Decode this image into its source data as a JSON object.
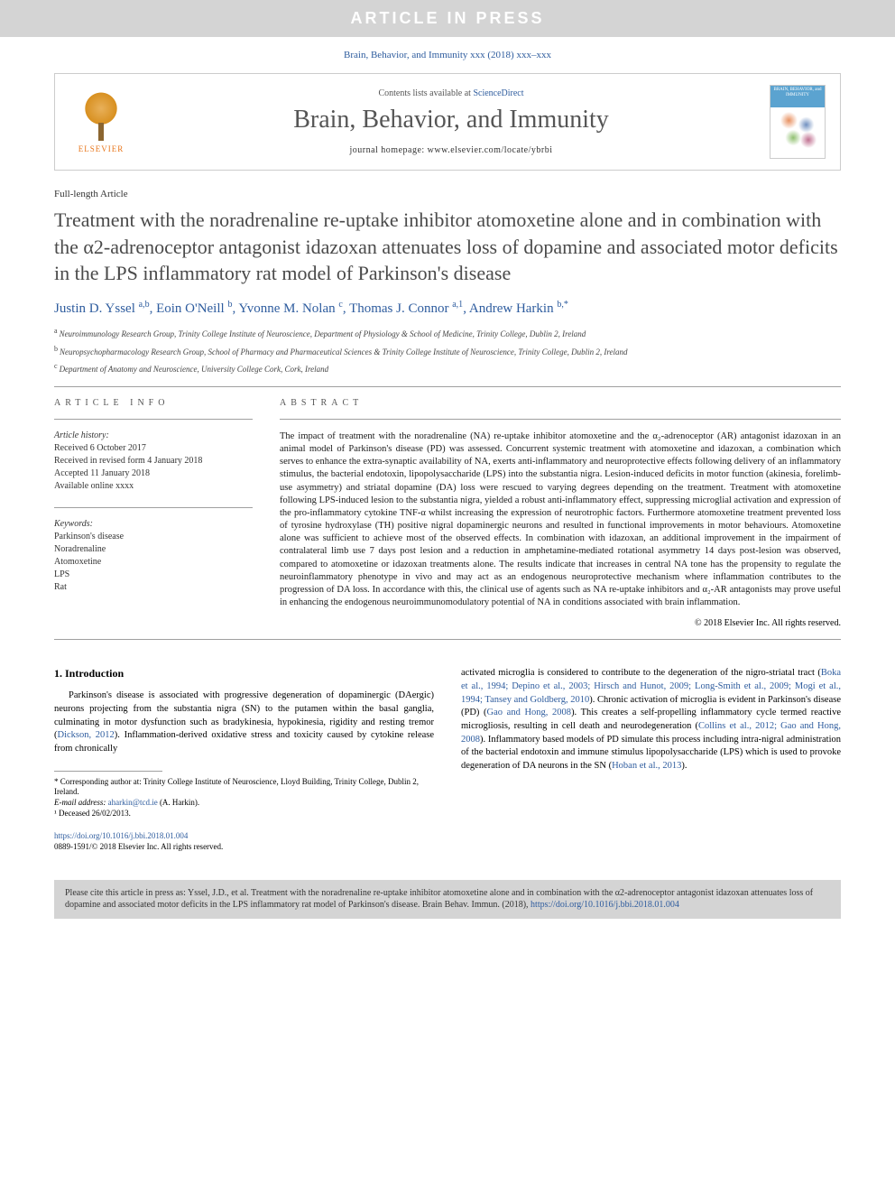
{
  "banner": {
    "text": "ARTICLE IN PRESS"
  },
  "citation_top": "Brain, Behavior, and Immunity xxx (2018) xxx–xxx",
  "header": {
    "elsevier": "ELSEVIER",
    "contents_prefix": "Contents lists available at ",
    "contents_link": "ScienceDirect",
    "journal_name": "Brain, Behavior, and Immunity",
    "homepage": "journal homepage: www.elsevier.com/locate/ybrbi",
    "cover_title": "BRAIN, BEHAVIOR, and IMMUNITY"
  },
  "article": {
    "type": "Full-length Article",
    "title": "Treatment with the noradrenaline re-uptake inhibitor atomoxetine alone and in combination with the α2-adrenoceptor antagonist idazoxan attenuates loss of dopamine and associated motor deficits in the LPS inflammatory rat model of Parkinson's disease",
    "authors_list": [
      {
        "name": "Justin D. Yssel",
        "sup": "a,b"
      },
      {
        "name": "Eoin O'Neill",
        "sup": "b"
      },
      {
        "name": "Yvonne M. Nolan",
        "sup": "c"
      },
      {
        "name": "Thomas J. Connor",
        "sup": "a,1"
      },
      {
        "name": "Andrew Harkin",
        "sup": "b,*"
      }
    ],
    "affiliations": [
      {
        "sup": "a",
        "text": "Neuroimmunology Research Group, Trinity College Institute of Neuroscience, Department of Physiology & School of Medicine, Trinity College, Dublin 2, Ireland"
      },
      {
        "sup": "b",
        "text": "Neuropsychopharmacology Research Group, School of Pharmacy and Pharmaceutical Sciences & Trinity College Institute of Neuroscience, Trinity College, Dublin 2, Ireland"
      },
      {
        "sup": "c",
        "text": "Department of Anatomy and Neuroscience, University College Cork, Cork, Ireland"
      }
    ]
  },
  "info": {
    "heading": "ARTICLE INFO",
    "history_label": "Article history:",
    "history": [
      "Received 6 October 2017",
      "Received in revised form 4 January 2018",
      "Accepted 11 January 2018",
      "Available online xxxx"
    ],
    "keywords_label": "Keywords:",
    "keywords": [
      "Parkinson's disease",
      "Noradrenaline",
      "Atomoxetine",
      "LPS",
      "Rat"
    ]
  },
  "abstract": {
    "heading": "ABSTRACT",
    "text": "The impact of treatment with the noradrenaline (NA) re-uptake inhibitor atomoxetine and the α₂-adrenoceptor (AR) antagonist idazoxan in an animal model of Parkinson's disease (PD) was assessed. Concurrent systemic treatment with atomoxetine and idazoxan, a combination which serves to enhance the extra-synaptic availability of NA, exerts anti-inflammatory and neuroprotective effects following delivery of an inflammatory stimulus, the bacterial endotoxin, lipopolysaccharide (LPS) into the substantia nigra. Lesion-induced deficits in motor function (akinesia, forelimb-use asymmetry) and striatal dopamine (DA) loss were rescued to varying degrees depending on the treatment. Treatment with atomoxetine following LPS-induced lesion to the substantia nigra, yielded a robust anti-inflammatory effect, suppressing microglial activation and expression of the pro-inflammatory cytokine TNF-α whilst increasing the expression of neurotrophic factors. Furthermore atomoxetine treatment prevented loss of tyrosine hydroxylase (TH) positive nigral dopaminergic neurons and resulted in functional improvements in motor behaviours. Atomoxetine alone was sufficient to achieve most of the observed effects. In combination with idazoxan, an additional improvement in the impairment of contralateral limb use 7 days post lesion and a reduction in amphetamine-mediated rotational asymmetry 14 days post-lesion was observed, compared to atomoxetine or idazoxan treatments alone. The results indicate that increases in central NA tone has the propensity to regulate the neuroinflammatory phenotype in vivo and may act as an endogenous neuroprotective mechanism where inflammation contributes to the progression of DA loss. In accordance with this, the clinical use of agents such as NA re-uptake inhibitors and α₂-AR antagonists may prove useful in enhancing the endogenous neuroimmunomodulatory potential of NA in conditions associated with brain inflammation.",
    "copyright": "© 2018 Elsevier Inc. All rights reserved."
  },
  "body": {
    "section1_heading": "1. Introduction",
    "col1_para": "Parkinson's disease is associated with progressive degeneration of dopaminergic (DAergic) neurons projecting from the substantia nigra (SN) to the putamen within the basal ganglia, culminating in motor dysfunction such as bradykinesia, hypokinesia, rigidity and resting tremor (",
    "col1_ref1": "Dickson, 2012",
    "col1_para_cont": "). Inflammation-derived oxidative stress and toxicity caused by cytokine release from chronically",
    "col2_para": "activated microglia is considered to contribute to the degeneration of the nigro-striatal tract (",
    "col2_ref1": "Boka et al., 1994; Depino et al., 2003; Hirsch and Hunot, 2009; Long-Smith et al., 2009; Mogi et al., 1994; Tansey and Goldberg, 2010",
    "col2_para2": "). Chronic activation of microglia is evident in Parkinson's disease (PD) (",
    "col2_ref2": "Gao and Hong, 2008",
    "col2_para3": "). This creates a self-propelling inflammatory cycle termed reactive microgliosis, resulting in cell death and neurodegeneration (",
    "col2_ref3": "Collins et al., 2012; Gao and Hong, 2008",
    "col2_para4": "). Inflammatory based models of PD simulate this process including intra-nigral administration of the bacterial endotoxin and immune stimulus lipopolysaccharide (LPS) which is used to provoke degeneration of DA neurons in the SN (",
    "col2_ref4": "Hoban et al., 2013",
    "col2_para5": ")."
  },
  "footnotes": {
    "corresponding": "* Corresponding author at: Trinity College Institute of Neuroscience, Lloyd Building, Trinity College, Dublin 2, Ireland.",
    "email_label": "E-mail address: ",
    "email": "aharkin@tcd.ie",
    "email_name": " (A. Harkin).",
    "deceased": "¹ Deceased 26/02/2013."
  },
  "doi": {
    "url": "https://doi.org/10.1016/j.bbi.2018.01.004",
    "issn": "0889-1591/© 2018 Elsevier Inc. All rights reserved."
  },
  "cite_box": {
    "text": "Please cite this article in press as: Yssel, J.D., et al. Treatment with the noradrenaline re-uptake inhibitor atomoxetine alone and in combination with the α2-adrenoceptor antagonist idazoxan attenuates loss of dopamine and associated motor deficits in the LPS inflammatory rat model of Parkinson's disease. Brain Behav. Immun. (2018), ",
    "doi": "https://doi.org/10.1016/j.bbi.2018.01.004"
  },
  "colors": {
    "banner_bg": "#d4d4d4",
    "banner_text": "#ffffff",
    "link_blue": "#2e5c9e",
    "title_gray": "#4a4a4a",
    "elsevier_orange": "#e8751a",
    "border_gray": "#cccccc",
    "cite_box_bg": "#d4d4d4"
  },
  "typography": {
    "title_fontsize": 22,
    "journal_name_fontsize": 28,
    "body_fontsize": 10.5,
    "author_fontsize": 15,
    "footnote_fontsize": 9
  }
}
